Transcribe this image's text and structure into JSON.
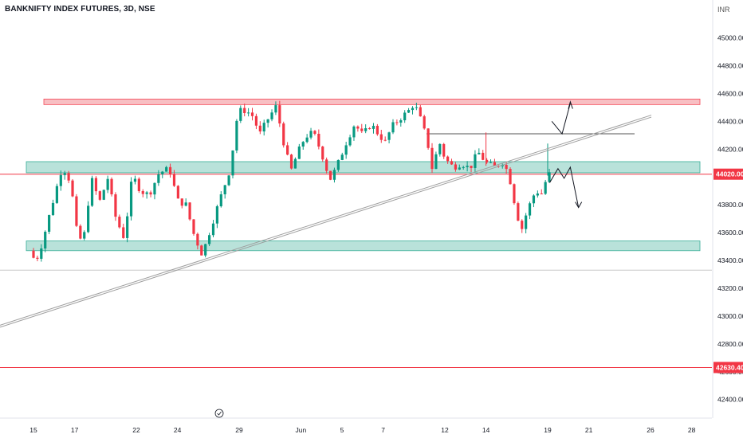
{
  "header": {
    "title": "BANKNIFTY INDEX FUTURES, 3D, NSE",
    "currency": "INR"
  },
  "chart_data": {
    "type": "candlestick",
    "ylim": [
      42300,
      45200
    ],
    "y_ticks": [
      45000,
      44800,
      44600,
      44400,
      44200,
      44000,
      43800,
      43600,
      43400,
      43200,
      43000,
      42800,
      42600,
      42400
    ],
    "y_tick_labels": [
      "45000.00",
      "44800.00",
      "44600.00",
      "44400.00",
      "44200.00",
      "44000.00",
      "43800.00",
      "43600.00",
      "43400.00",
      "43200.00",
      "43000.00",
      "42800.00",
      "42600.00",
      "42400.00"
    ],
    "x_tick_labels": [
      {
        "label": "15",
        "day": 0
      },
      {
        "label": "17",
        "day": 2
      },
      {
        "label": "22",
        "day": 5
      },
      {
        "label": "24",
        "day": 7
      },
      {
        "label": "29",
        "day": 10
      },
      {
        "label": "Jun",
        "day": 13
      },
      {
        "label": "5",
        "day": 15
      },
      {
        "label": "7",
        "day": 17
      },
      {
        "label": "12",
        "day": 20
      },
      {
        "label": "14",
        "day": 22
      },
      {
        "label": "19",
        "day": 25
      },
      {
        "label": "21",
        "day": 27
      },
      {
        "label": "26",
        "day": 30
      },
      {
        "label": "28",
        "day": 32
      }
    ],
    "price_labels": [
      {
        "value": "44020.00",
        "price": 44020,
        "color": "#f23645"
      },
      {
        "value": "42630.40",
        "price": 42630.4,
        "color": "#f23645"
      }
    ],
    "zones": [
      {
        "from": 44520,
        "to": 44560,
        "color": "red"
      },
      {
        "from": 44030,
        "to": 44110,
        "color": "green"
      },
      {
        "from": 43470,
        "to": 43540,
        "color": "green"
      }
    ],
    "horizontal_lines": [
      {
        "price": 44020,
        "color": "#f23645"
      },
      {
        "price": 42630.4,
        "color": "#f23645"
      },
      {
        "price": 44310,
        "color": "#555555"
      },
      {
        "price": 43330,
        "color": "#c8c8c8"
      }
    ],
    "trendline": {
      "from_price": 42920,
      "to_price": 44430
    },
    "candles_summary": {
      "period_low": 43330,
      "period_high": 44560,
      "last_close": 44030,
      "up_color": "#089981",
      "down_color": "#f23645"
    }
  },
  "footer": {
    "event_icon": "calendar-event-icon"
  }
}
